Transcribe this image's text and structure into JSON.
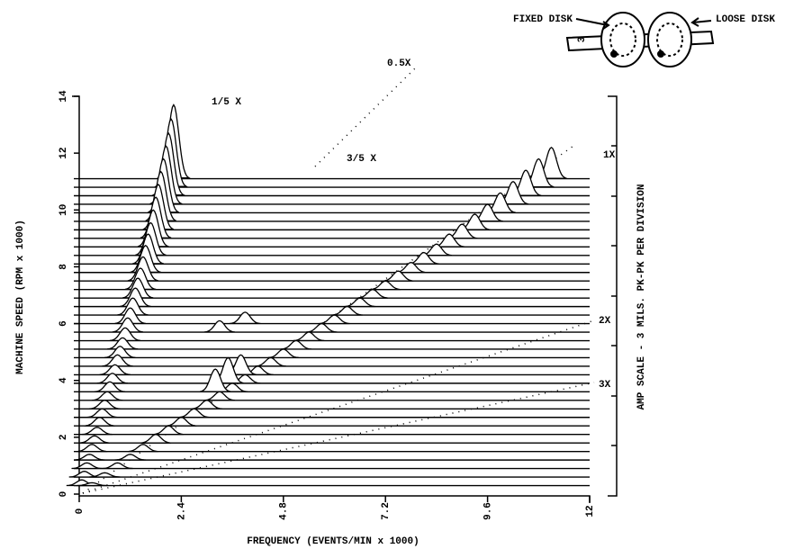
{
  "chart_data": {
    "type": "waterfall",
    "x_label": "FREQUENCY (EVENTS/MIN x 1000)",
    "y_label": "MACHINE SPEED (RPM x 1000)",
    "y2_label": "AMP SCALE - 3 MILS. PK-PK PER DIVISION",
    "xlim": [
      0,
      12
    ],
    "xticks": [
      0,
      2.4,
      4.8,
      7.2,
      9.6,
      12
    ],
    "ylim": [
      0,
      14
    ],
    "yticks": [
      0,
      2,
      4,
      6,
      8,
      10,
      12,
      14
    ],
    "color": "#000000",
    "annotations": [
      "1/5 X",
      "0.5X",
      "3/5 X",
      "1X",
      "2X",
      "3X"
    ],
    "diagram": {
      "fixed": "FIXED DISK",
      "loose": "LOOSE DISK",
      "mark": "3"
    },
    "traces": [
      {
        "speed": 0.3,
        "peak_x": [
          0.06,
          0.3
        ],
        "peak_amp": [
          0.2,
          0.1
        ]
      },
      {
        "speed": 0.6,
        "peak_x": [
          0.12,
          0.6
        ],
        "peak_amp": [
          0.2,
          0.15
        ]
      },
      {
        "speed": 0.9,
        "peak_x": [
          0.18,
          0.9
        ],
        "peak_amp": [
          0.2,
          0.2
        ]
      },
      {
        "speed": 1.2,
        "peak_x": [
          0.24,
          1.2
        ],
        "peak_amp": [
          0.2,
          0.2
        ]
      },
      {
        "speed": 1.5,
        "peak_x": [
          0.3,
          1.5
        ],
        "peak_amp": [
          0.25,
          0.25
        ]
      },
      {
        "speed": 1.8,
        "peak_x": [
          0.36,
          1.8
        ],
        "peak_amp": [
          0.25,
          0.3
        ]
      },
      {
        "speed": 2.1,
        "peak_x": [
          0.42,
          2.1
        ],
        "peak_amp": [
          0.25,
          0.3
        ]
      },
      {
        "speed": 2.4,
        "peak_x": [
          0.48,
          2.4
        ],
        "peak_amp": [
          0.3,
          0.3
        ]
      },
      {
        "speed": 2.7,
        "peak_x": [
          0.54,
          2.7
        ],
        "peak_amp": [
          0.3,
          0.3
        ]
      },
      {
        "speed": 3.0,
        "peak_x": [
          0.6,
          3.0
        ],
        "peak_amp": [
          0.3,
          0.3
        ]
      },
      {
        "speed": 3.3,
        "peak_x": [
          0.66,
          3.3
        ],
        "peak_amp": [
          0.3,
          0.3
        ]
      },
      {
        "speed": 3.6,
        "peak_x": [
          0.72,
          3.6,
          3.2
        ],
        "peak_amp": [
          0.35,
          0.3,
          0.8
        ]
      },
      {
        "speed": 3.9,
        "peak_x": [
          0.78,
          3.9,
          3.5
        ],
        "peak_amp": [
          0.35,
          0.3,
          0.9
        ]
      },
      {
        "speed": 4.2,
        "peak_x": [
          0.84,
          4.2,
          3.8
        ],
        "peak_amp": [
          0.35,
          0.3,
          0.7
        ]
      },
      {
        "speed": 4.5,
        "peak_x": [
          0.9,
          4.5
        ],
        "peak_amp": [
          0.4,
          0.3
        ]
      },
      {
        "speed": 4.8,
        "peak_x": [
          0.96,
          4.8
        ],
        "peak_amp": [
          0.4,
          0.3
        ]
      },
      {
        "speed": 5.1,
        "peak_x": [
          1.02,
          5.1
        ],
        "peak_amp": [
          0.4,
          0.3
        ]
      },
      {
        "speed": 5.4,
        "peak_x": [
          1.08,
          5.4
        ],
        "peak_amp": [
          0.45,
          0.3
        ]
      },
      {
        "speed": 5.7,
        "peak_x": [
          1.14,
          5.7,
          3.3
        ],
        "peak_amp": [
          0.5,
          0.3,
          0.4
        ]
      },
      {
        "speed": 6.0,
        "peak_x": [
          1.2,
          6.0,
          3.9
        ],
        "peak_amp": [
          0.55,
          0.3,
          0.4
        ]
      },
      {
        "speed": 6.3,
        "peak_x": [
          1.26,
          6.3
        ],
        "peak_amp": [
          0.6,
          0.3
        ]
      },
      {
        "speed": 6.6,
        "peak_x": [
          1.32,
          6.6
        ],
        "peak_amp": [
          0.65,
          0.3
        ]
      },
      {
        "speed": 6.9,
        "peak_x": [
          1.38,
          6.9
        ],
        "peak_amp": [
          0.7,
          0.3
        ]
      },
      {
        "speed": 7.2,
        "peak_x": [
          1.44,
          7.2
        ],
        "peak_amp": [
          0.75,
          0.3
        ]
      },
      {
        "speed": 7.5,
        "peak_x": [
          1.5,
          7.5
        ],
        "peak_amp": [
          0.85,
          0.35
        ]
      },
      {
        "speed": 7.8,
        "peak_x": [
          1.56,
          7.8
        ],
        "peak_amp": [
          0.95,
          0.35
        ]
      },
      {
        "speed": 8.1,
        "peak_x": [
          1.62,
          8.1
        ],
        "peak_amp": [
          1.05,
          0.4
        ]
      },
      {
        "speed": 8.4,
        "peak_x": [
          1.68,
          8.4
        ],
        "peak_amp": [
          1.15,
          0.4
        ]
      },
      {
        "speed": 8.7,
        "peak_x": [
          1.74,
          8.7
        ],
        "peak_amp": [
          1.3,
          0.45
        ]
      },
      {
        "speed": 9.0,
        "peak_x": [
          1.8,
          9.0
        ],
        "peak_amp": [
          1.45,
          0.5
        ]
      },
      {
        "speed": 9.3,
        "peak_x": [
          1.86,
          9.3
        ],
        "peak_amp": [
          1.6,
          0.55
        ]
      },
      {
        "speed": 9.6,
        "peak_x": [
          1.92,
          9.6
        ],
        "peak_amp": [
          1.75,
          0.6
        ]
      },
      {
        "speed": 9.9,
        "peak_x": [
          1.98,
          9.9
        ],
        "peak_amp": [
          1.9,
          0.7
        ]
      },
      {
        "speed": 10.2,
        "peak_x": [
          2.04,
          10.2
        ],
        "peak_amp": [
          2.05,
          0.8
        ]
      },
      {
        "speed": 10.5,
        "peak_x": [
          2.1,
          10.5
        ],
        "peak_amp": [
          2.2,
          0.9
        ]
      },
      {
        "speed": 10.8,
        "peak_x": [
          2.16,
          10.8
        ],
        "peak_amp": [
          2.4,
          1.0
        ]
      },
      {
        "speed": 11.1,
        "peak_x": [
          2.22,
          11.1
        ],
        "peak_amp": [
          2.6,
          1.1
        ]
      }
    ]
  }
}
